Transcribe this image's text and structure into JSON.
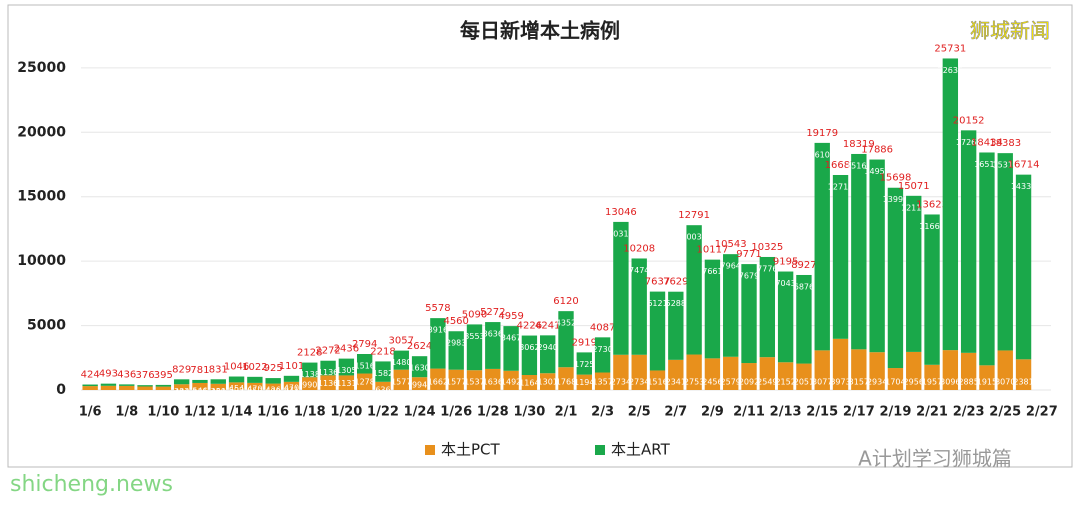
{
  "chart_data": {
    "type": "stacked_bar",
    "title": "每日新增本土病例",
    "categories": [
      "1/6",
      null,
      "1/8",
      null,
      "1/10",
      null,
      "1/12",
      null,
      "1/14",
      null,
      "1/16",
      null,
      "1/18",
      null,
      "1/20",
      null,
      "1/22",
      null,
      "1/24",
      null,
      "1/26",
      null,
      "1/28",
      null,
      "1/30",
      null,
      "2/1",
      null,
      "2/3",
      null,
      "2/5",
      null,
      "2/7",
      null,
      "2/9",
      null,
      "2/11",
      null,
      "2/13",
      null,
      "2/15",
      null,
      "2/17",
      null,
      "2/19",
      null,
      "2/21",
      null,
      "2/23",
      null,
      "2/25",
      null,
      "2/27"
    ],
    "series": [
      {
        "name": "本土PCT",
        "color": "#e8901c",
        "values": [
          303,
          324,
          318,
          273,
          263,
          446,
          546,
          481,
          592,
          552,
          499,
          631,
          990,
          1136,
          1131,
          1278,
          636,
          1577,
          994,
          1662,
          1577,
          1537,
          1636,
          1492,
          1164,
          1301,
          1768,
          1194,
          1357,
          2734,
          2734,
          1516,
          2341,
          2753,
          2456,
          2579,
          2092,
          2549,
          2152,
          2051,
          3077,
          3973,
          3157,
          2934,
          1704,
          2956,
          1957,
          3096,
          2885,
          1915,
          3070,
          2381,
          null
        ]
      },
      {
        "name": "本土ART",
        "color": "#1aa84a",
        "values": [
          121,
          169,
          118,
          103,
          132,
          383,
          235,
          350,
          454,
          470,
          426,
          470,
          1138,
          1136,
          1305,
          1516,
          1582,
          1480,
          1630,
          3916,
          2983,
          3553,
          3636,
          3467,
          3062,
          2940,
          4352,
          1725,
          2730,
          10312,
          7474,
          6121,
          5288,
          10038,
          7661,
          7964,
          7679,
          7776,
          7043,
          6876,
          16102,
          12714,
          15162,
          14952,
          13994,
          12115,
          11666,
          22635,
          17267,
          16519,
          15313,
          14333,
          null
        ]
      }
    ],
    "totals": [
      424,
      493,
      436,
      376,
      395,
      829,
      781,
      831,
      1046,
      1022,
      925,
      1101,
      2128,
      2272,
      2436,
      2794,
      2218,
      3057,
      2624,
      5578,
      4560,
      5090,
      5272,
      4959,
      4226,
      4241,
      6120,
      2919,
      4087,
      13046,
      10208,
      7637,
      7629,
      12791,
      10117,
      10543,
      9771,
      10325,
      9195,
      8927,
      19179,
      16687,
      18319,
      17886,
      15698,
      15071,
      13623,
      25731,
      20152,
      18434,
      18383,
      16714,
      null
    ],
    "ylim": [
      0,
      26000
    ],
    "yticks": [
      0,
      5000,
      10000,
      15000,
      20000,
      25000
    ],
    "grid": true,
    "legend": "bottom",
    "watermarks": [
      "狮城新闻",
      "A计划学习狮城篇",
      "shicheng.news"
    ]
  }
}
